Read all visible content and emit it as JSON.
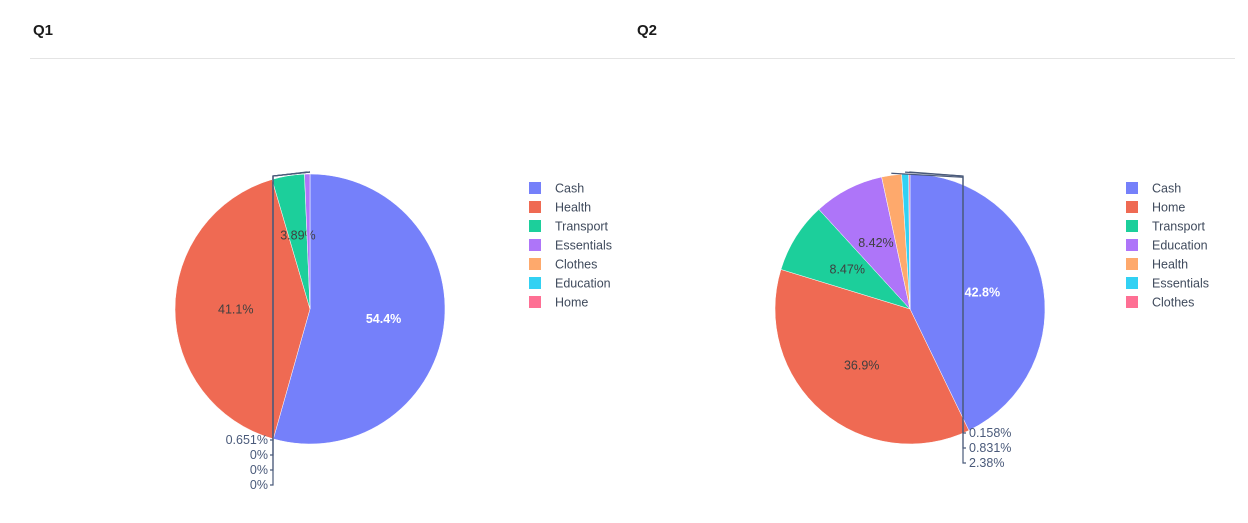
{
  "panels": [
    {
      "title": "Q1"
    },
    {
      "title": "Q2"
    }
  ],
  "chart_data": [
    {
      "type": "pie",
      "title": "Q1",
      "legend_position": "right",
      "slices": [
        {
          "label": "Cash",
          "value": 54.4,
          "text": "54.4%",
          "color": "#7580fa"
        },
        {
          "label": "Health",
          "value": 41.1,
          "text": "41.1%",
          "color": "#ef6a53"
        },
        {
          "label": "Transport",
          "value": 3.89,
          "text": "3.89%",
          "color": "#1ccf9b"
        },
        {
          "label": "Essentials",
          "value": 0.651,
          "text": "0.651%",
          "color": "#ae75f9"
        },
        {
          "label": "Clothes",
          "value": 0,
          "text": "0%",
          "color": "#fea96c"
        },
        {
          "label": "Education",
          "value": 0,
          "text": "0%",
          "color": "#32d1f3"
        },
        {
          "label": "Home",
          "value": 0,
          "text": "0%",
          "color": "#fe6f94"
        }
      ]
    },
    {
      "type": "pie",
      "title": "Q2",
      "legend_position": "right",
      "slices": [
        {
          "label": "Cash",
          "value": 42.8,
          "text": "42.8%",
          "color": "#7580fa"
        },
        {
          "label": "Home",
          "value": 36.9,
          "text": "36.9%",
          "color": "#ef6a53"
        },
        {
          "label": "Transport",
          "value": 8.47,
          "text": "8.47%",
          "color": "#1ccf9b"
        },
        {
          "label": "Education",
          "value": 8.42,
          "text": "8.42%",
          "color": "#ae75f9"
        },
        {
          "label": "Health",
          "value": 2.38,
          "text": "2.38%",
          "color": "#fea96c"
        },
        {
          "label": "Essentials",
          "value": 0.831,
          "text": "0.831%",
          "color": "#32d1f3"
        },
        {
          "label": "Clothes",
          "value": 0.158,
          "text": "0.158%",
          "color": "#fe6f94"
        }
      ]
    }
  ]
}
